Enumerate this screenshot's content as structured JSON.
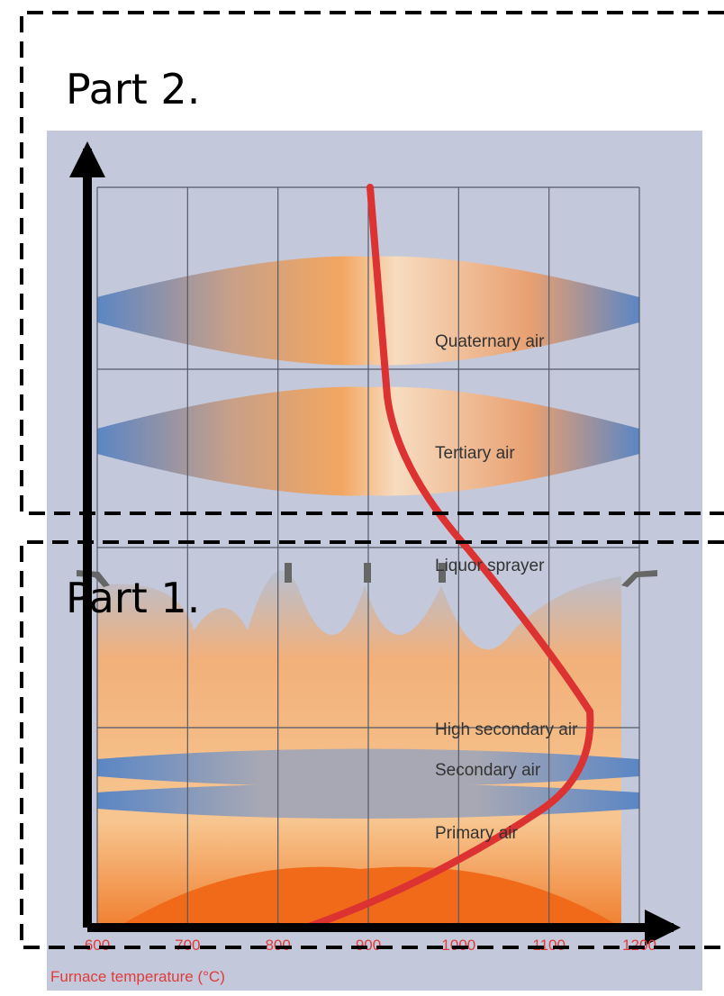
{
  "parts": [
    "Part 2.",
    "Part 1."
  ],
  "labels": {
    "quaternary": "Quaternary air",
    "tertiary": "Tertiary air",
    "liquor": "Liquor sprayer",
    "high_secondary": "High secondary air",
    "secondary": "Secondary air",
    "primary": "Primary air"
  },
  "axis": {
    "title": "Furnace temperature (°C)",
    "ticks": [
      600,
      700,
      800,
      900,
      1000,
      1100,
      1200
    ]
  }
}
